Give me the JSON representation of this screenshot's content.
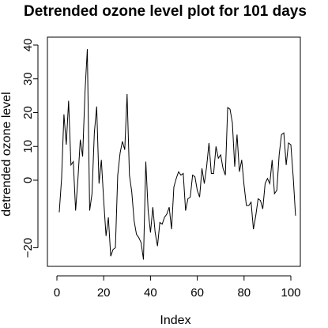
{
  "chart_data": {
    "type": "line",
    "title": "Detrended ozone level plot for 101 days",
    "xlabel": "Index",
    "ylabel": "detrended ozone level",
    "xlim": [
      0,
      101
    ],
    "ylim": [
      -23,
      40
    ],
    "x_ticks": [
      0,
      20,
      40,
      60,
      80,
      100
    ],
    "y_ticks": [
      -20,
      0,
      10,
      20,
      30,
      40
    ],
    "x_tick_labels": [
      "0",
      "20",
      "40",
      "60",
      "80",
      "100"
    ],
    "y_tick_labels": [
      "−20",
      "0",
      "10",
      "20",
      "30",
      "40"
    ],
    "grid": false,
    "legend": "none",
    "line_color": "#000000",
    "series": [
      {
        "values": [
          -9.5,
          0.5,
          19.5,
          10.5,
          23.5,
          4.5,
          5.5,
          -9.0,
          0.5,
          12.0,
          7.0,
          26.0,
          38.8,
          -9.0,
          -4.0,
          14.0,
          21.8,
          -1.0,
          6.0,
          -6.0,
          -16.5,
          -11.0,
          -22.5,
          -20.5,
          -20.0,
          1.5,
          8.0,
          11.5,
          9.0,
          25.5,
          1.5,
          -3.5,
          -12.0,
          -16.0,
          -17.0,
          -18.5,
          -23.5,
          5.5,
          -9.0,
          -15.5,
          -8.0,
          -15.5,
          -19.5,
          -12.5,
          -13.0,
          -11.0,
          -10.0,
          -8.0,
          -14.5,
          -2.0,
          0.5,
          2.5,
          1.5,
          2.0,
          -9.0,
          -5.5,
          -5.0,
          1.5,
          1.0,
          -3.0,
          -5.0,
          3.5,
          -1.0,
          4.0,
          11.0,
          2.0,
          2.0,
          10.0,
          6.5,
          7.5,
          3.5,
          1.5,
          21.5,
          21.0,
          17.0,
          4.0,
          13.5,
          2.5,
          6.0,
          -1.5,
          -7.5,
          -7.5,
          -6.5,
          -14.5,
          -10.5,
          -5.5,
          -6.0,
          -8.5,
          -1.0,
          0.5,
          -1.0,
          6.0,
          -4.0,
          -3.0,
          7.5,
          13.5,
          14.0,
          4.5,
          11.0,
          10.5,
          1.0,
          -10.5
        ]
      }
    ]
  }
}
